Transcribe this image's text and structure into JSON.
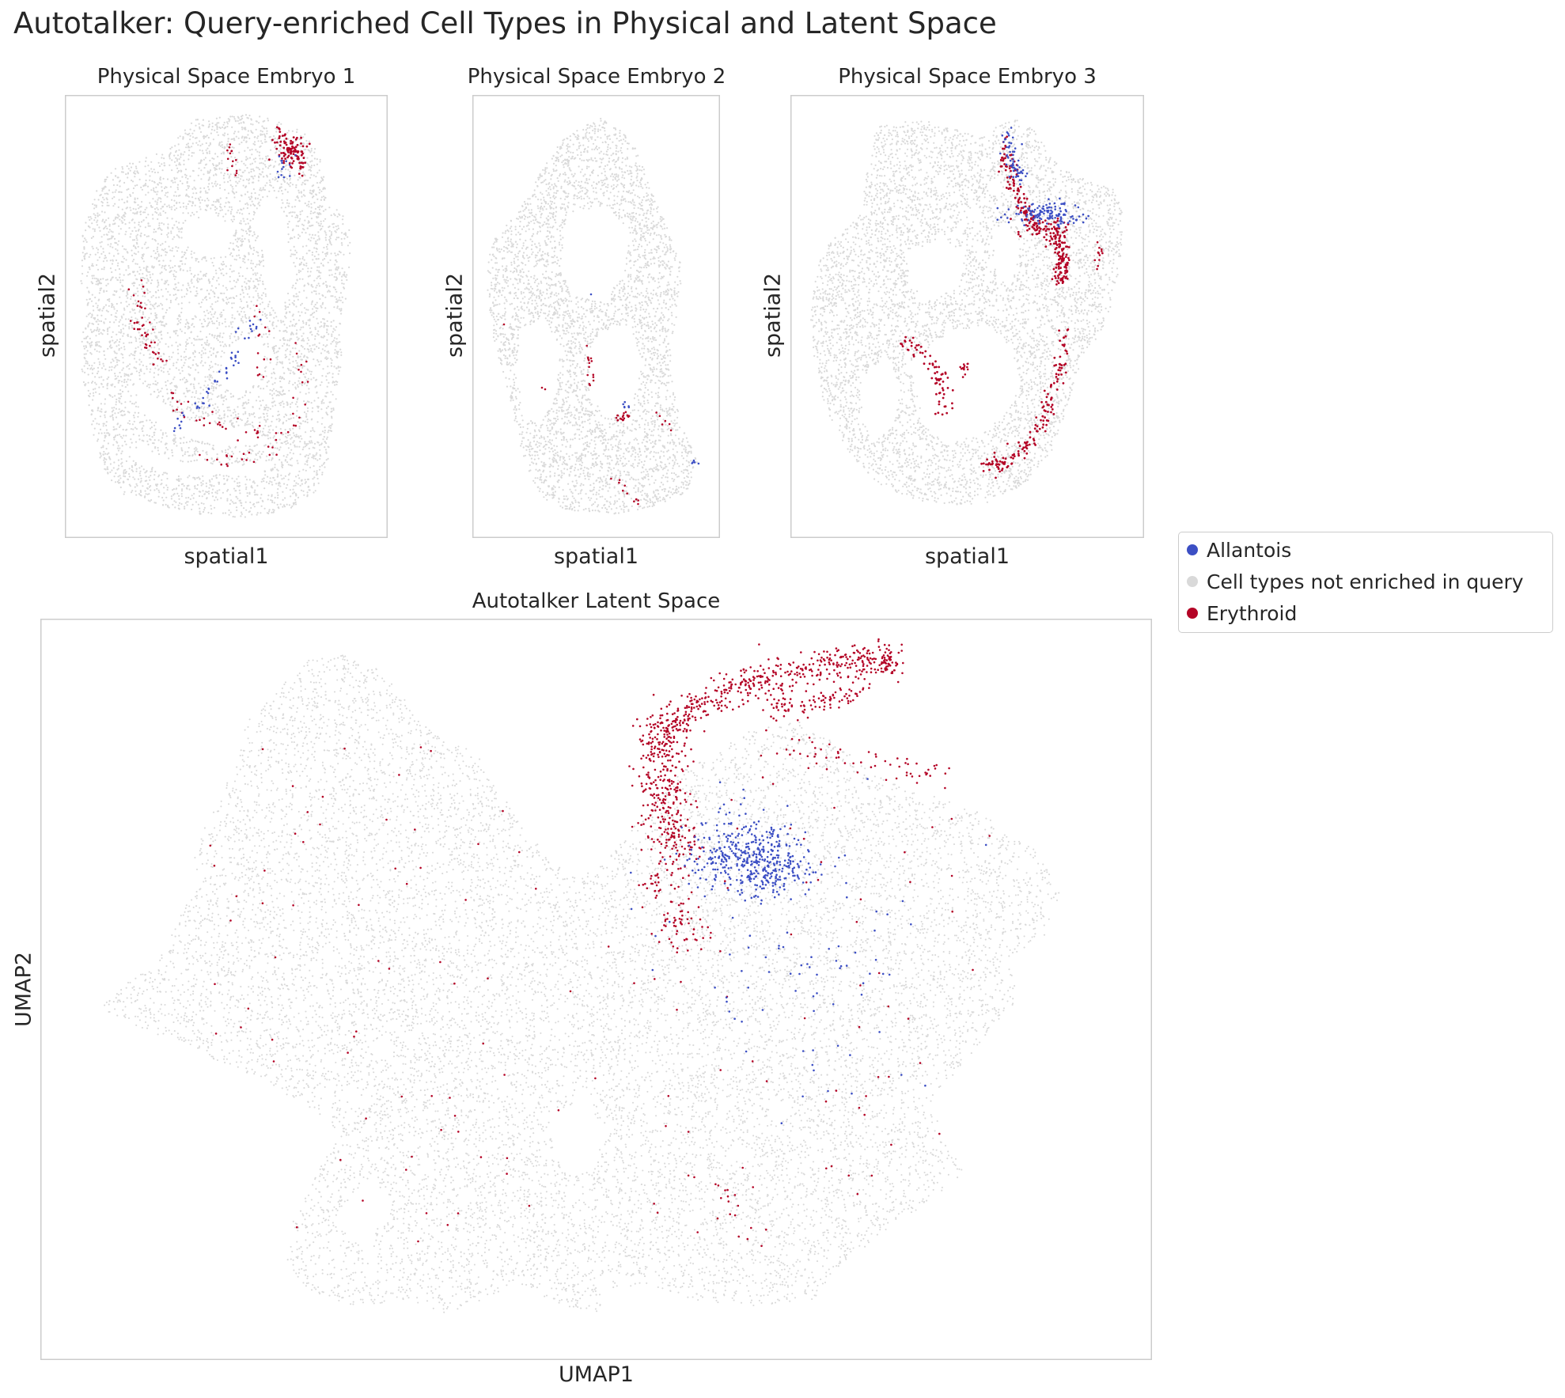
{
  "figure": {
    "title": "Autotalker: Query-enriched Cell Types in Physical and Latent Space"
  },
  "colors": {
    "allantois": "#3c4fc4",
    "not_enriched": "#d9d9d9",
    "erythroid": "#b40426",
    "frame": "#cccccc"
  },
  "legend": {
    "items": [
      {
        "label": "Allantois",
        "color": "#3c4fc4"
      },
      {
        "label": "Cell types not enriched in query",
        "color": "#d9d9d9"
      },
      {
        "label": "Erythroid",
        "color": "#b40426"
      }
    ],
    "placement": "right"
  },
  "chart_data": [
    {
      "type": "scatter",
      "title": "Physical Space Embryo 1",
      "xlabel": "spatial1",
      "ylabel": "spatial2",
      "grid": false,
      "series": [
        {
          "name": "Allantois"
        },
        {
          "name": "Cell types not enriched in query"
        },
        {
          "name": "Erythroid"
        }
      ]
    },
    {
      "type": "scatter",
      "title": "Physical Space Embryo 2",
      "xlabel": "spatial1",
      "ylabel": "spatial2",
      "grid": false,
      "series": [
        {
          "name": "Allantois"
        },
        {
          "name": "Cell types not enriched in query"
        },
        {
          "name": "Erythroid"
        }
      ]
    },
    {
      "type": "scatter",
      "title": "Physical Space Embryo 3",
      "xlabel": "spatial1",
      "ylabel": "spatial2",
      "grid": false,
      "series": [
        {
          "name": "Allantois"
        },
        {
          "name": "Cell types not enriched in query"
        },
        {
          "name": "Erythroid"
        }
      ]
    },
    {
      "type": "scatter",
      "title": "Autotalker Latent Space",
      "xlabel": "UMAP1",
      "ylabel": "UMAP2",
      "grid": false,
      "series": [
        {
          "name": "Allantois"
        },
        {
          "name": "Cell types not enriched in query"
        },
        {
          "name": "Erythroid"
        }
      ]
    }
  ]
}
